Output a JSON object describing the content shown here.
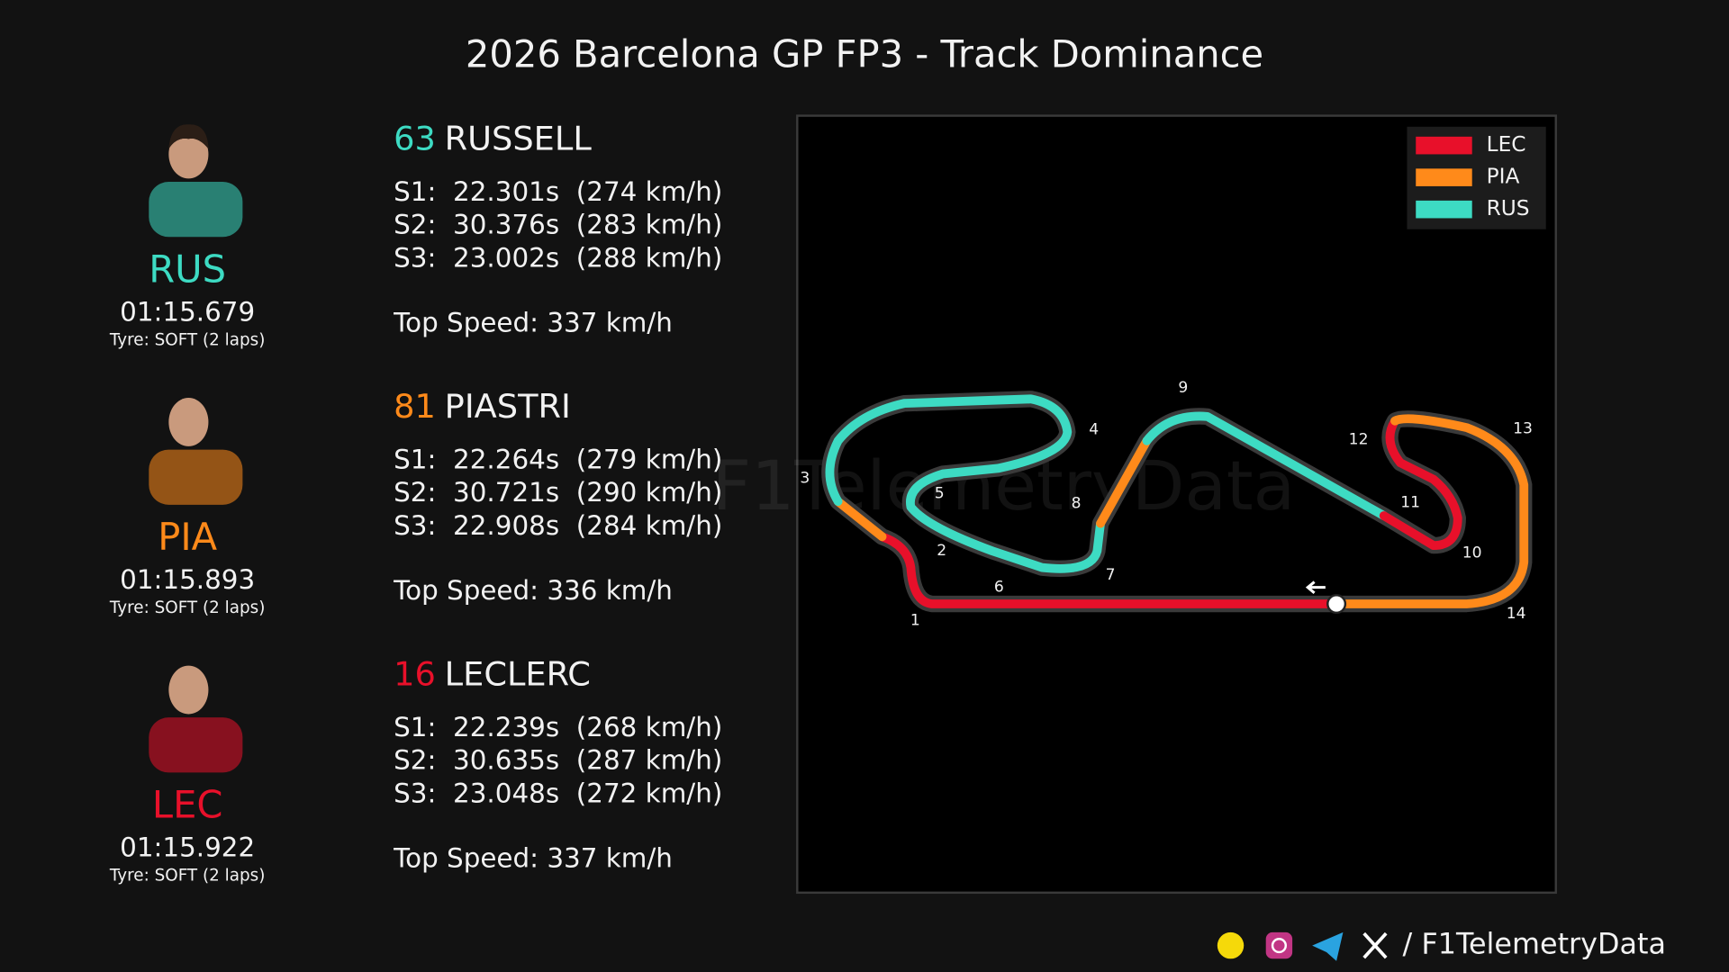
{
  "title": "2026 Barcelona GP FP3 - Track Dominance",
  "drivers": [
    {
      "number": "63",
      "name": "RUSSELL",
      "code": "RUS",
      "color": "#3ddbc3",
      "lap_time": "01:15.679",
      "tyre": "Tyre: SOFT (2 laps)",
      "sectors": [
        "S1:  22.301s  (274 km/h)",
        "S2:  30.376s  (283 km/h)",
        "S3:  23.002s  (288 km/h)"
      ],
      "top_speed": "Top Speed: 337 km/h"
    },
    {
      "number": "81",
      "name": "PIASTRI",
      "code": "PIA",
      "color": "#ff8a1a",
      "lap_time": "01:15.893",
      "tyre": "Tyre: SOFT (2 laps)",
      "sectors": [
        "S1:  22.264s  (279 km/h)",
        "S2:  30.721s  (290 km/h)",
        "S3:  22.908s  (284 km/h)"
      ],
      "top_speed": "Top Speed: 336 km/h"
    },
    {
      "number": "16",
      "name": "LECLERC",
      "code": "LEC",
      "color": "#e8102a",
      "lap_time": "01:15.922",
      "tyre": "Tyre: SOFT (2 laps)",
      "sectors": [
        "S1:  22.239s  (268 km/h)",
        "S2:  30.635s  (287 km/h)",
        "S3:  23.048s  (272 km/h)"
      ],
      "top_speed": "Top Speed: 337 km/h"
    }
  ],
  "legend": [
    {
      "label": "LEC",
      "color": "#e8102a"
    },
    {
      "label": "PIA",
      "color": "#ff8a1a"
    },
    {
      "label": "RUS",
      "color": "#3ddbc3"
    }
  ],
  "corners": [
    "1",
    "2",
    "3",
    "4",
    "5",
    "6",
    "7",
    "8",
    "9",
    "10",
    "11",
    "12",
    "13",
    "14"
  ],
  "watermark": "F1TelemetryData",
  "footer": "/ F1TelemetryData"
}
